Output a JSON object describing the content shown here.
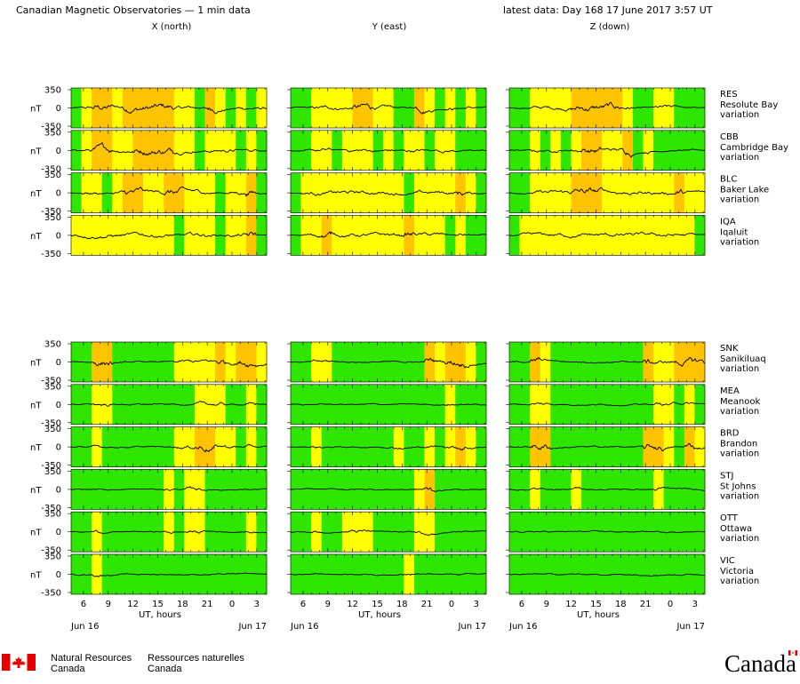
{
  "header": {
    "title": "Canadian Magnetic Observatories — 1 min data",
    "latest": "latest data: Day 168   17 June 2017   3:57 UT",
    "components": [
      "X (north)",
      "Y (east)",
      "Z (down)"
    ]
  },
  "colors": {
    "quiet": "#2ee600",
    "unsettled": "#ffff00",
    "active": "#ffc300",
    "storm": "#ff9a00",
    "trace": "#000000"
  },
  "axis": {
    "unit": "nT",
    "yticks": [
      "350",
      "0",
      "-350"
    ],
    "xticks": [
      "6",
      "9",
      "12",
      "15",
      "18",
      "21",
      "0",
      "3"
    ],
    "xlabel": "UT, hours",
    "date_start": "Jun 16",
    "date_end": "Jun 17"
  },
  "footer": {
    "dept_en_1": "Natural Resources",
    "dept_en_2": "Canada",
    "dept_fr_1": "Ressources naturelles",
    "dept_fr_2": "Canada",
    "wordmark": "Canada"
  },
  "chart_data": {
    "type": "line",
    "x_range_hours": [
      4.5,
      28.2
    ],
    "ylim": [
      -350,
      350
    ],
    "groups": [
      {
        "stations": [
          {
            "code": "RES",
            "name": "Resolute Bay",
            "label": "variation",
            "activity": [
              [
                "g",
                "y",
                "a",
                "a",
                "y",
                "a",
                "a",
                "a",
                "a",
                "a",
                "y",
                "y",
                "g",
                "a",
                "y",
                "g",
                "y",
                "g",
                "y"
              ],
              [
                "g",
                "g",
                "y",
                "y",
                "y",
                "y",
                "a",
                "a",
                "y",
                "y",
                "g",
                "g",
                "a",
                "y",
                "g",
                "y",
                "g",
                "y",
                "g"
              ],
              [
                "g",
                "g",
                "y",
                "y",
                "y",
                "y",
                "a",
                "a",
                "a",
                "a",
                "a",
                "y",
                "g",
                "g",
                "y",
                "y",
                "g",
                "g",
                "g"
              ]
            ]
          },
          {
            "code": "CBB",
            "name": "Cambridge Bay",
            "label": "variation",
            "activity": [
              [
                "g",
                "y",
                "a",
                "a",
                "y",
                "y",
                "a",
                "a",
                "a",
                "a",
                "y",
                "y",
                "g",
                "y",
                "y",
                "y",
                "g",
                "y",
                "g"
              ],
              [
                "g",
                "g",
                "y",
                "y",
                "g",
                "y",
                "y",
                "y",
                "g",
                "y",
                "g",
                "y",
                "y",
                "g",
                "y",
                "y",
                "g",
                "g",
                "g"
              ],
              [
                "g",
                "g",
                "y",
                "g",
                "y",
                "g",
                "y",
                "a",
                "a",
                "y",
                "y",
                "a",
                "g",
                "y",
                "g",
                "g",
                "g",
                "g",
                "g"
              ]
            ]
          },
          {
            "code": "BLC",
            "name": "Baker Lake",
            "label": "variation",
            "activity": [
              [
                "g",
                "y",
                "y",
                "g",
                "y",
                "a",
                "a",
                "y",
                "y",
                "a",
                "a",
                "y",
                "y",
                "y",
                "g",
                "y",
                "y",
                "a",
                "g"
              ],
              [
                "g",
                "y",
                "y",
                "y",
                "y",
                "y",
                "y",
                "y",
                "y",
                "y",
                "y",
                "g",
                "y",
                "y",
                "y",
                "y",
                "a",
                "y",
                "g"
              ],
              [
                "g",
                "g",
                "y",
                "y",
                "y",
                "y",
                "a",
                "a",
                "a",
                "y",
                "y",
                "y",
                "y",
                "y",
                "y",
                "y",
                "a",
                "y",
                "y"
              ]
            ]
          },
          {
            "code": "IQA",
            "name": "Iqaluit",
            "label": "variation",
            "activity": [
              [
                "y",
                "y",
                "y",
                "y",
                "y",
                "y",
                "y",
                "y",
                "y",
                "y",
                "g",
                "y",
                "y",
                "y",
                "g",
                "y",
                "y",
                "a",
                "g"
              ],
              [
                "g",
                "y",
                "y",
                "a",
                "y",
                "y",
                "y",
                "y",
                "y",
                "y",
                "y",
                "a",
                "y",
                "y",
                "y",
                "g",
                "y",
                "g",
                "g"
              ],
              [
                "g",
                "y",
                "y",
                "y",
                "y",
                "y",
                "y",
                "y",
                "y",
                "y",
                "y",
                "y",
                "y",
                "y",
                "y",
                "y",
                "y",
                "y",
                "g"
              ]
            ]
          }
        ]
      },
      {
        "stations": [
          {
            "code": "SNK",
            "name": "Sanikiluaq",
            "label": "variation",
            "activity": [
              [
                "g",
                "g",
                "a",
                "a",
                "g",
                "g",
                "g",
                "g",
                "g",
                "g",
                "y",
                "y",
                "y",
                "y",
                "a",
                "y",
                "a",
                "a",
                "y"
              ],
              [
                "g",
                "g",
                "y",
                "y",
                "g",
                "g",
                "g",
                "g",
                "g",
                "g",
                "g",
                "g",
                "g",
                "a",
                "y",
                "a",
                "a",
                "y",
                "g"
              ],
              [
                "g",
                "g",
                "a",
                "y",
                "g",
                "g",
                "g",
                "g",
                "g",
                "g",
                "g",
                "g",
                "g",
                "a",
                "y",
                "y",
                "a",
                "a",
                "a"
              ]
            ]
          },
          {
            "code": "MEA",
            "name": "Meanook",
            "label": "variation",
            "activity": [
              [
                "g",
                "g",
                "y",
                "y",
                "g",
                "g",
                "g",
                "g",
                "g",
                "g",
                "g",
                "g",
                "y",
                "y",
                "y",
                "g",
                "g",
                "y",
                "g"
              ],
              [
                "g",
                "g",
                "g",
                "g",
                "g",
                "g",
                "g",
                "g",
                "g",
                "g",
                "g",
                "g",
                "g",
                "g",
                "g",
                "y",
                "g",
                "g",
                "g"
              ],
              [
                "g",
                "g",
                "y",
                "y",
                "g",
                "g",
                "g",
                "g",
                "g",
                "g",
                "g",
                "g",
                "g",
                "g",
                "y",
                "y",
                "g",
                "y",
                "g"
              ]
            ]
          },
          {
            "code": "BRD",
            "name": "Brandon",
            "label": "variation",
            "activity": [
              [
                "g",
                "g",
                "y",
                "g",
                "g",
                "g",
                "g",
                "g",
                "g",
                "g",
                "y",
                "y",
                "a",
                "a",
                "y",
                "y",
                "g",
                "y",
                "g"
              ],
              [
                "g",
                "g",
                "y",
                "g",
                "g",
                "g",
                "g",
                "g",
                "g",
                "g",
                "y",
                "g",
                "g",
                "y",
                "g",
                "y",
                "a",
                "y",
                "g"
              ],
              [
                "g",
                "g",
                "a",
                "a",
                "g",
                "g",
                "g",
                "g",
                "g",
                "g",
                "g",
                "g",
                "g",
                "a",
                "a",
                "y",
                "g",
                "a",
                "y"
              ]
            ]
          },
          {
            "code": "STJ",
            "name": "St Johns",
            "label": "variation",
            "activity": [
              [
                "g",
                "g",
                "g",
                "g",
                "g",
                "g",
                "g",
                "g",
                "g",
                "y",
                "g",
                "y",
                "y",
                "g",
                "g",
                "g",
                "g",
                "g",
                "g"
              ],
              [
                "g",
                "g",
                "g",
                "g",
                "g",
                "g",
                "g",
                "g",
                "g",
                "g",
                "g",
                "g",
                "y",
                "a",
                "g",
                "g",
                "g",
                "g",
                "g"
              ],
              [
                "g",
                "g",
                "y",
                "g",
                "g",
                "g",
                "y",
                "g",
                "g",
                "g",
                "g",
                "g",
                "g",
                "g",
                "y",
                "g",
                "g",
                "g",
                "g"
              ]
            ]
          },
          {
            "code": "OTT",
            "name": "Ottawa",
            "label": "variation",
            "activity": [
              [
                "g",
                "g",
                "y",
                "g",
                "g",
                "g",
                "g",
                "g",
                "g",
                "y",
                "g",
                "y",
                "y",
                "g",
                "g",
                "g",
                "g",
                "y",
                "g"
              ],
              [
                "g",
                "g",
                "y",
                "g",
                "g",
                "y",
                "y",
                "y",
                "g",
                "g",
                "g",
                "g",
                "y",
                "y",
                "g",
                "g",
                "g",
                "g",
                "g"
              ],
              [
                "g",
                "g",
                "g",
                "g",
                "g",
                "g",
                "g",
                "g",
                "g",
                "g",
                "g",
                "g",
                "g",
                "g",
                "g",
                "g",
                "g",
                "g",
                "g"
              ]
            ]
          },
          {
            "code": "VIC",
            "name": "Victoria",
            "label": "variation",
            "activity": [
              [
                "g",
                "g",
                "y",
                "g",
                "g",
                "g",
                "g",
                "g",
                "g",
                "g",
                "g",
                "g",
                "g",
                "g",
                "g",
                "g",
                "g",
                "g",
                "g"
              ],
              [
                "g",
                "g",
                "g",
                "g",
                "g",
                "g",
                "g",
                "g",
                "g",
                "g",
                "g",
                "y",
                "g",
                "g",
                "g",
                "g",
                "g",
                "g",
                "g"
              ],
              [
                "g",
                "g",
                "g",
                "g",
                "g",
                "g",
                "g",
                "g",
                "g",
                "g",
                "g",
                "g",
                "g",
                "g",
                "g",
                "g",
                "g",
                "g",
                "g"
              ]
            ]
          }
        ]
      }
    ]
  }
}
